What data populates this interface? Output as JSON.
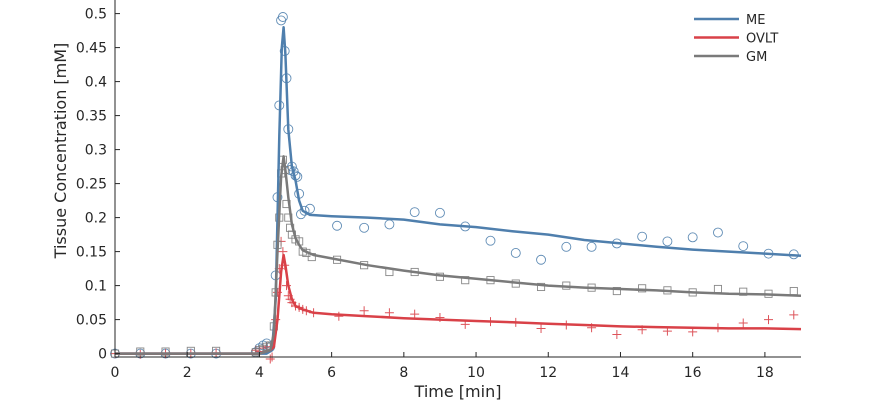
{
  "chart_data": {
    "type": "line",
    "title": "",
    "xlabel": "Time [min]",
    "ylabel": "Tissue Concentration [mM]",
    "xlim": [
      0,
      19
    ],
    "ylim": [
      -0.005,
      0.52
    ],
    "xticks": [
      0,
      2,
      4,
      6,
      8,
      10,
      12,
      14,
      16,
      18
    ],
    "yticks": [
      0,
      0.05,
      0.1,
      0.15,
      0.2,
      0.25,
      0.3,
      0.35,
      0.4,
      0.45,
      0.5
    ],
    "xtick_labels": [
      "0",
      "2",
      "4",
      "6",
      "8",
      "10",
      "12",
      "14",
      "16",
      "18"
    ],
    "ytick_labels": [
      "0",
      "0.05",
      "0.1",
      "0.15",
      "0.2",
      "0.25",
      "0.3",
      "0.35",
      "0.4",
      "0.45",
      "0.5"
    ],
    "legend_position": "top-right",
    "grid": false,
    "series": [
      {
        "name": "ME",
        "color": "#4f7fad",
        "marker": "circle",
        "fit": [
          [
            0,
            0
          ],
          [
            3.9,
            0
          ],
          [
            4.2,
            0
          ],
          [
            4.35,
            0.005
          ],
          [
            4.45,
            0.08
          ],
          [
            4.55,
            0.32
          ],
          [
            4.62,
            0.45
          ],
          [
            4.67,
            0.48
          ],
          [
            4.72,
            0.44
          ],
          [
            4.8,
            0.33
          ],
          [
            4.9,
            0.275
          ],
          [
            5.0,
            0.255
          ],
          [
            5.1,
            0.225
          ],
          [
            5.2,
            0.21
          ],
          [
            5.4,
            0.204
          ],
          [
            6.0,
            0.202
          ],
          [
            7.0,
            0.2
          ],
          [
            8.0,
            0.197
          ],
          [
            9.0,
            0.19
          ],
          [
            10.0,
            0.186
          ],
          [
            11.0,
            0.18
          ],
          [
            12.0,
            0.175
          ],
          [
            13.0,
            0.167
          ],
          [
            14.0,
            0.162
          ],
          [
            15.0,
            0.157
          ],
          [
            16.0,
            0.153
          ],
          [
            17.0,
            0.15
          ],
          [
            18.0,
            0.147
          ],
          [
            19.0,
            0.144
          ]
        ],
        "points": [
          [
            0,
            0
          ],
          [
            0.7,
            0
          ],
          [
            1.4,
            0
          ],
          [
            2.1,
            0
          ],
          [
            2.8,
            0
          ],
          [
            3.9,
            0.002
          ],
          [
            4.0,
            0.008
          ],
          [
            4.1,
            0.012
          ],
          [
            4.2,
            0.015
          ],
          [
            4.3,
            0.01
          ],
          [
            4.45,
            0.115
          ],
          [
            4.5,
            0.23
          ],
          [
            4.55,
            0.365
          ],
          [
            4.6,
            0.49
          ],
          [
            4.65,
            0.495
          ],
          [
            4.7,
            0.445
          ],
          [
            4.75,
            0.405
          ],
          [
            4.8,
            0.33
          ],
          [
            4.85,
            0.27
          ],
          [
            4.9,
            0.275
          ],
          [
            4.95,
            0.268
          ],
          [
            5.0,
            0.262
          ],
          [
            5.05,
            0.26
          ],
          [
            5.1,
            0.235
          ],
          [
            5.15,
            0.205
          ],
          [
            5.25,
            0.21
          ],
          [
            5.4,
            0.213
          ],
          [
            6.15,
            0.188
          ],
          [
            6.9,
            0.185
          ],
          [
            7.6,
            0.19
          ],
          [
            8.3,
            0.208
          ],
          [
            9.0,
            0.207
          ],
          [
            9.7,
            0.187
          ],
          [
            10.4,
            0.166
          ],
          [
            11.1,
            0.148
          ],
          [
            11.8,
            0.138
          ],
          [
            12.5,
            0.157
          ],
          [
            13.2,
            0.157
          ],
          [
            13.9,
            0.162
          ],
          [
            14.6,
            0.172
          ],
          [
            15.3,
            0.165
          ],
          [
            16.0,
            0.171
          ],
          [
            16.7,
            0.178
          ],
          [
            17.4,
            0.158
          ],
          [
            18.1,
            0.147
          ],
          [
            18.8,
            0.146
          ]
        ]
      },
      {
        "name": "OVLT",
        "color": "#d94148",
        "marker": "plus",
        "fit": [
          [
            0,
            0
          ],
          [
            4.0,
            0
          ],
          [
            4.3,
            0.005
          ],
          [
            4.4,
            0.01
          ],
          [
            4.5,
            0.05
          ],
          [
            4.6,
            0.12
          ],
          [
            4.67,
            0.145
          ],
          [
            4.72,
            0.13
          ],
          [
            4.8,
            0.1
          ],
          [
            4.9,
            0.08
          ],
          [
            5.0,
            0.07
          ],
          [
            5.2,
            0.065
          ],
          [
            5.5,
            0.06
          ],
          [
            6.0,
            0.058
          ],
          [
            7.0,
            0.055
          ],
          [
            8.0,
            0.052
          ],
          [
            9.0,
            0.05
          ],
          [
            10.0,
            0.048
          ],
          [
            11.0,
            0.046
          ],
          [
            12.0,
            0.044
          ],
          [
            13.0,
            0.042
          ],
          [
            14.0,
            0.04
          ],
          [
            15.0,
            0.039
          ],
          [
            16.0,
            0.038
          ],
          [
            17.0,
            0.037
          ],
          [
            18.0,
            0.037
          ],
          [
            19.0,
            0.036
          ]
        ],
        "points": [
          [
            0,
            0
          ],
          [
            0.7,
            -0.001
          ],
          [
            1.4,
            0
          ],
          [
            2.1,
            0
          ],
          [
            2.8,
            0.001
          ],
          [
            3.9,
            0.005
          ],
          [
            4.0,
            0.003
          ],
          [
            4.1,
            0.008
          ],
          [
            4.2,
            0.01
          ],
          [
            4.3,
            -0.008
          ],
          [
            4.35,
            -0.005
          ],
          [
            4.45,
            0.05
          ],
          [
            4.5,
            0.09
          ],
          [
            4.55,
            0.125
          ],
          [
            4.6,
            0.165
          ],
          [
            4.65,
            0.15
          ],
          [
            4.7,
            0.13
          ],
          [
            4.75,
            0.1
          ],
          [
            4.8,
            0.085
          ],
          [
            4.85,
            0.08
          ],
          [
            4.9,
            0.075
          ],
          [
            5.0,
            0.07
          ],
          [
            5.1,
            0.068
          ],
          [
            5.2,
            0.065
          ],
          [
            5.3,
            0.063
          ],
          [
            5.5,
            0.06
          ],
          [
            6.2,
            0.055
          ],
          [
            6.9,
            0.063
          ],
          [
            7.6,
            0.06
          ],
          [
            8.3,
            0.058
          ],
          [
            9.0,
            0.053
          ],
          [
            9.7,
            0.043
          ],
          [
            10.4,
            0.047
          ],
          [
            11.1,
            0.046
          ],
          [
            11.8,
            0.037
          ],
          [
            12.5,
            0.042
          ],
          [
            13.2,
            0.038
          ],
          [
            13.9,
            0.028
          ],
          [
            14.6,
            0.035
          ],
          [
            15.3,
            0.033
          ],
          [
            16.0,
            0.032
          ],
          [
            16.7,
            0.038
          ],
          [
            17.4,
            0.045
          ],
          [
            18.1,
            0.05
          ],
          [
            18.8,
            0.057
          ]
        ]
      },
      {
        "name": "GM",
        "color": "#7a7a7a",
        "marker": "square",
        "fit": [
          [
            0,
            0
          ],
          [
            4.0,
            0
          ],
          [
            4.3,
            0.005
          ],
          [
            4.4,
            0.03
          ],
          [
            4.5,
            0.15
          ],
          [
            4.6,
            0.26
          ],
          [
            4.67,
            0.29
          ],
          [
            4.72,
            0.27
          ],
          [
            4.8,
            0.23
          ],
          [
            4.9,
            0.19
          ],
          [
            5.0,
            0.17
          ],
          [
            5.1,
            0.16
          ],
          [
            5.2,
            0.152
          ],
          [
            5.5,
            0.145
          ],
          [
            6.0,
            0.14
          ],
          [
            7.0,
            0.13
          ],
          [
            8.0,
            0.122
          ],
          [
            9.0,
            0.115
          ],
          [
            10.0,
            0.11
          ],
          [
            11.0,
            0.105
          ],
          [
            12.0,
            0.1
          ],
          [
            13.0,
            0.097
          ],
          [
            14.0,
            0.095
          ],
          [
            15.0,
            0.093
          ],
          [
            16.0,
            0.09
          ],
          [
            17.0,
            0.088
          ],
          [
            18.0,
            0.087
          ],
          [
            19.0,
            0.085
          ]
        ],
        "points": [
          [
            0,
            0
          ],
          [
            0.7,
            0.003
          ],
          [
            1.4,
            0.003
          ],
          [
            2.1,
            0.004
          ],
          [
            2.8,
            0.004
          ],
          [
            3.9,
            0.002
          ],
          [
            4.0,
            0.005
          ],
          [
            4.1,
            0.007
          ],
          [
            4.2,
            0.01
          ],
          [
            4.3,
            0.012
          ],
          [
            4.4,
            0.04
          ],
          [
            4.45,
            0.09
          ],
          [
            4.5,
            0.16
          ],
          [
            4.55,
            0.2
          ],
          [
            4.6,
            0.265
          ],
          [
            4.65,
            0.285
          ],
          [
            4.7,
            0.27
          ],
          [
            4.75,
            0.22
          ],
          [
            4.8,
            0.2
          ],
          [
            4.85,
            0.185
          ],
          [
            4.9,
            0.175
          ],
          [
            5.0,
            0.168
          ],
          [
            5.1,
            0.165
          ],
          [
            5.2,
            0.15
          ],
          [
            5.3,
            0.148
          ],
          [
            5.45,
            0.142
          ],
          [
            6.15,
            0.138
          ],
          [
            6.9,
            0.13
          ],
          [
            7.6,
            0.12
          ],
          [
            8.3,
            0.12
          ],
          [
            9.0,
            0.113
          ],
          [
            9.7,
            0.108
          ],
          [
            10.4,
            0.108
          ],
          [
            11.1,
            0.103
          ],
          [
            11.8,
            0.098
          ],
          [
            12.5,
            0.1
          ],
          [
            13.2,
            0.097
          ],
          [
            13.9,
            0.092
          ],
          [
            14.6,
            0.096
          ],
          [
            15.3,
            0.093
          ],
          [
            16.0,
            0.09
          ],
          [
            16.7,
            0.095
          ],
          [
            17.4,
            0.091
          ],
          [
            18.1,
            0.088
          ],
          [
            18.8,
            0.092
          ]
        ]
      }
    ]
  }
}
